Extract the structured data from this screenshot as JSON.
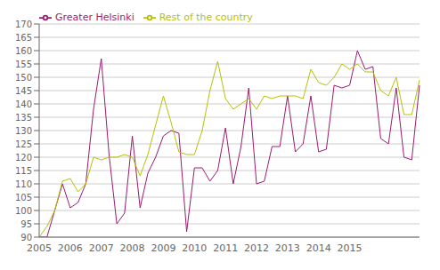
{
  "chart_data": {
    "type": "line",
    "categories": [
      "2005",
      null,
      null,
      null,
      "2006",
      null,
      null,
      null,
      "2007",
      null,
      null,
      null,
      "2008",
      null,
      null,
      null,
      "2009",
      null,
      null,
      null,
      "2010",
      null,
      null,
      null,
      "2011",
      null,
      null,
      null,
      "2012",
      null,
      null,
      null,
      "2013",
      null,
      null,
      null,
      "2014",
      null,
      null,
      null,
      "2015",
      null,
      null,
      null,
      null,
      null,
      null,
      null,
      null,
      null
    ],
    "series": [
      {
        "name": "Greater Helsinki",
        "color": "#9b1b6e",
        "values": [
          90,
          90,
          100,
          110,
          101,
          103,
          110,
          138,
          157,
          121,
          95,
          99,
          128,
          101,
          114,
          120,
          128,
          130,
          129,
          92,
          116,
          116,
          111,
          115,
          131,
          110,
          124,
          146,
          110,
          111,
          124,
          124,
          143,
          122,
          125,
          143,
          122,
          123,
          147,
          146,
          147,
          160,
          153,
          154,
          127,
          125,
          146,
          120,
          119,
          147
        ]
      },
      {
        "name": "Rest of the country",
        "color": "#b5c100",
        "values": [
          90,
          94,
          100,
          111,
          112,
          107,
          110,
          120,
          119,
          120,
          120,
          121,
          120,
          113,
          121,
          132,
          143,
          133,
          122,
          121,
          121,
          130,
          145,
          156,
          142,
          138,
          140,
          142,
          138,
          143,
          142,
          143,
          143,
          143,
          142,
          153,
          148,
          147,
          150,
          155,
          153,
          155,
          152,
          152,
          145,
          143,
          150,
          136,
          136,
          149
        ]
      }
    ],
    "ylim": [
      90,
      170
    ],
    "yticks": [
      90,
      95,
      100,
      105,
      110,
      115,
      120,
      125,
      130,
      135,
      140,
      145,
      150,
      155,
      160,
      165,
      170
    ],
    "grid": true,
    "legend": "upper left"
  }
}
